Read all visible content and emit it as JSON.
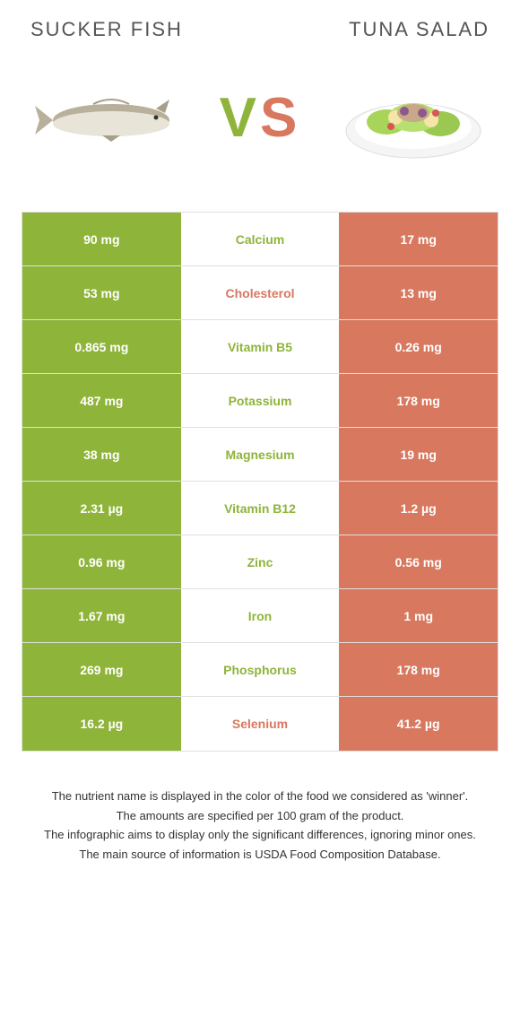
{
  "left_food": "Sucker fish",
  "right_food": "Tuna salad",
  "vs_label": "VS",
  "colors": {
    "green": "#8fb43a",
    "orange": "#d8785f",
    "row_border": "#e0e0e0",
    "text_dark": "#333333"
  },
  "rows": [
    {
      "left": "90 mg",
      "label": "Calcium",
      "right": "17 mg",
      "winner": "left"
    },
    {
      "left": "53 mg",
      "label": "Cholesterol",
      "right": "13 mg",
      "winner": "right"
    },
    {
      "left": "0.865 mg",
      "label": "Vitamin B5",
      "right": "0.26 mg",
      "winner": "left"
    },
    {
      "left": "487 mg",
      "label": "Potassium",
      "right": "178 mg",
      "winner": "left"
    },
    {
      "left": "38 mg",
      "label": "Magnesium",
      "right": "19 mg",
      "winner": "left"
    },
    {
      "left": "2.31 µg",
      "label": "Vitamin B12",
      "right": "1.2 µg",
      "winner": "left"
    },
    {
      "left": "0.96 mg",
      "label": "Zinc",
      "right": "0.56 mg",
      "winner": "left"
    },
    {
      "left": "1.67 mg",
      "label": "Iron",
      "right": "1 mg",
      "winner": "left"
    },
    {
      "left": "269 mg",
      "label": "Phosphorus",
      "right": "178 mg",
      "winner": "left"
    },
    {
      "left": "16.2 µg",
      "label": "Selenium",
      "right": "41.2 µg",
      "winner": "right"
    }
  ],
  "footer": [
    "The nutrient name is displayed in the color of the food we considered as 'winner'.",
    "The amounts are specified per 100 gram of the product.",
    "The infographic aims to display only the significant differences, ignoring minor ones.",
    "The main source of information is USDA Food Composition Database."
  ]
}
